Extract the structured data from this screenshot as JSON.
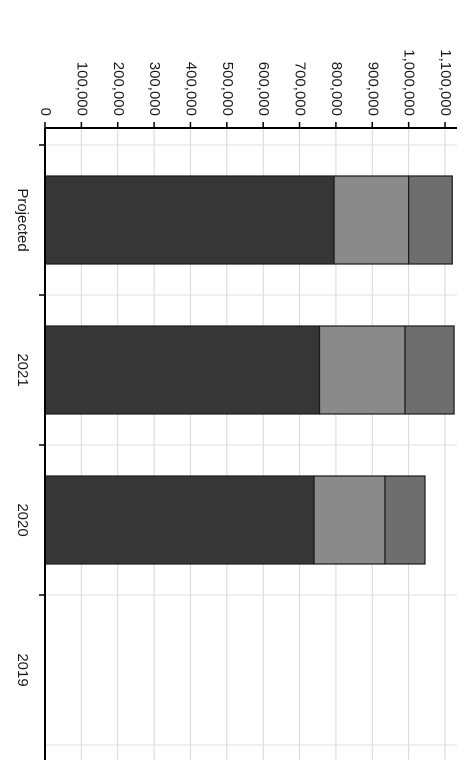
{
  "chart_data": {
    "type": "bar",
    "stacked": true,
    "orientation": "rotated-90-clockwise",
    "categories": [
      "Projected",
      "2021",
      "2020",
      "2019"
    ],
    "series": [
      {
        "values": [
          795000,
          755000,
          740000,
          null
        ],
        "color": "#363636"
      },
      {
        "values": [
          205000,
          235000,
          195000,
          null
        ],
        "color": "#8a8a8a"
      },
      {
        "values": [
          120000,
          135000,
          110000,
          null
        ],
        "color": "#6e6e6e"
      }
    ],
    "y_ticks": [
      "0",
      "100,000",
      "200,000",
      "300,000",
      "400,000",
      "500,000",
      "600,000",
      "700,000",
      "800,000",
      "900,000",
      "1,000,000",
      "1,100,000"
    ],
    "ylim": [
      0,
      1100000
    ],
    "grid": true,
    "title": "",
    "xlabel": "",
    "ylabel": ""
  }
}
